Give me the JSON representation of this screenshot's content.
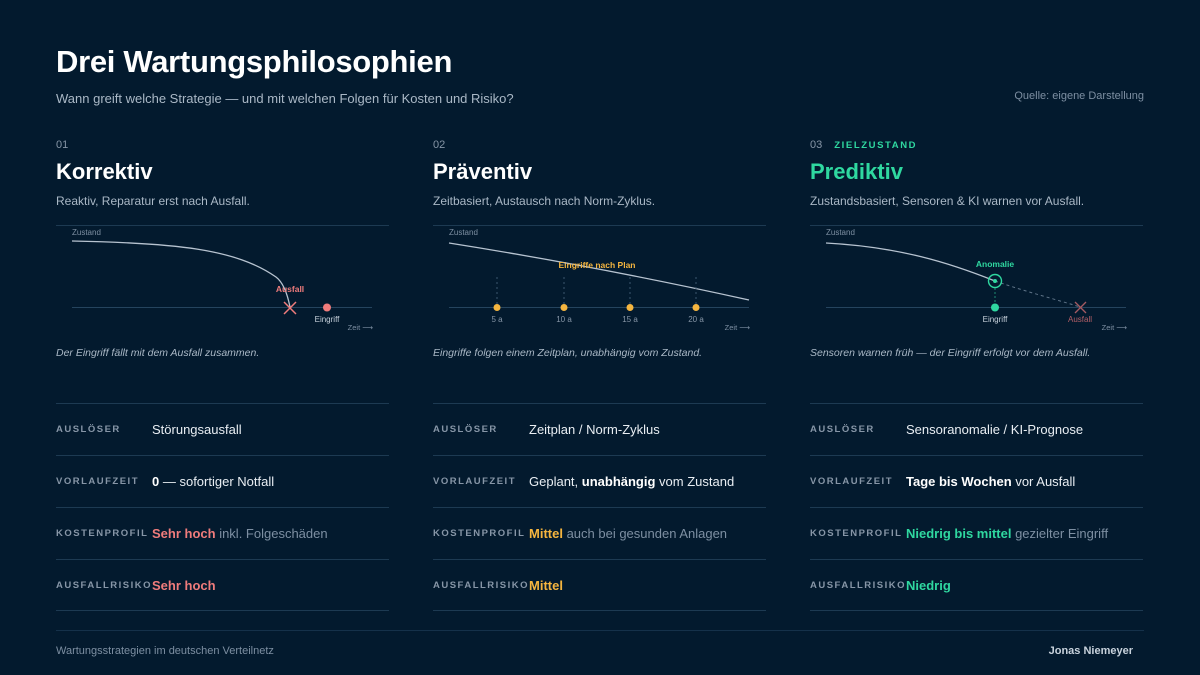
{
  "header": {
    "title": "Drei Wartungsphilosophien",
    "subtitle": "Wann greift welche Strategie — und mit welchen Folgen für Kosten und Risiko?",
    "source": "Quelle: eigene Darstellung"
  },
  "colors": {
    "background": "#031a2e",
    "red": "#f07c7c",
    "amber": "#f5b53f",
    "green": "#2fd8a0",
    "curve": "#b7c3d0"
  },
  "metric_labels": {
    "trigger": "AUSLÖSER",
    "lead_time": "VORLAUFZEIT",
    "cost": "KOSTENPROFIL",
    "risk": "AUSFALLRISIKO"
  },
  "columns": [
    {
      "number": "01",
      "name": "Korrektiv",
      "description": "Reaktiv, Reparatur erst nach Ausfall.",
      "chart": {
        "ylabel": "Zustand",
        "xlabel": "Zeit ⟶",
        "failure_label": "Ausfall",
        "intervention_label": "Eingriff"
      },
      "caption": "Der Eingriff fällt mit dem Ausfall zusammen.",
      "trigger": "Störungsausfall",
      "lead_time": {
        "strong": "0",
        "rest": " — sofortiger Notfall"
      },
      "cost": {
        "strong": "Sehr hoch",
        "rest": " inkl. Folgeschäden"
      },
      "risk": "Sehr hoch"
    },
    {
      "number": "02",
      "name": "Präventiv",
      "description": "Zeitbasiert, Austausch nach Norm-Zyklus.",
      "chart": {
        "ylabel": "Zustand",
        "xlabel": "Zeit ⟶",
        "plan_label": "Eingriffe nach Plan",
        "intervals": [
          "5 a",
          "10 a",
          "15 a",
          "20 a"
        ]
      },
      "caption": "Eingriffe folgen einem Zeitplan, unabhängig vom Zustand.",
      "trigger": "Zeitplan / Norm-Zyklus",
      "lead_time": {
        "pre": "Geplant, ",
        "strong": "unabhängig",
        "rest": " vom Zustand"
      },
      "cost": {
        "strong": "Mittel",
        "rest": " auch bei gesunden Anlagen"
      },
      "risk": "Mittel"
    },
    {
      "number": "03",
      "tag": "ZIELZUSTAND",
      "name": "Prediktiv",
      "description": "Zustandsbasiert, Sensoren & KI warnen vor Ausfall.",
      "chart": {
        "ylabel": "Zustand",
        "xlabel": "Zeit ⟶",
        "anomaly_label": "Anomalie",
        "intervention_label": "Eingriff",
        "failure_label": "Ausfall"
      },
      "caption": "Sensoren warnen früh — der Eingriff erfolgt vor dem Ausfall.",
      "trigger": "Sensoranomalie / KI-Prognose",
      "lead_time": {
        "strong": "Tage bis Wochen",
        "rest": " vor Ausfall"
      },
      "cost": {
        "strong": "Niedrig bis mittel",
        "rest": " gezielter Eingriff"
      },
      "risk": "Niedrig"
    }
  ],
  "footer": {
    "left": "Wartungsstrategien im deutschen Verteilnetz",
    "right": "Jonas Niemeyer"
  }
}
